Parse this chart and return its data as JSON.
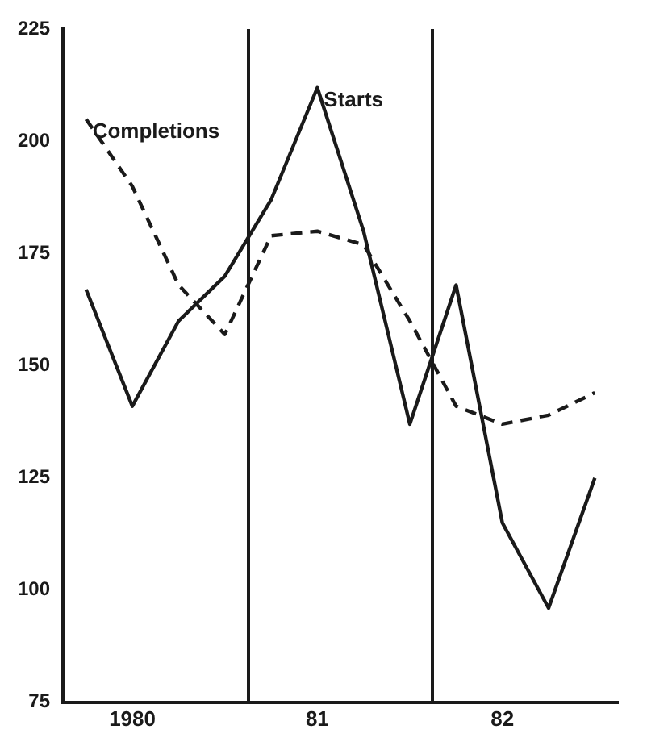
{
  "chart_data": {
    "type": "line",
    "categories": [
      null,
      "1980",
      null,
      null,
      null,
      "81",
      null,
      null,
      null,
      "82",
      null,
      null
    ],
    "series": [
      {
        "name": "Completions",
        "color": "#1a1a1a",
        "line_style": "dashed",
        "values": [
          205,
          190,
          168,
          157,
          179,
          180,
          177,
          160,
          141,
          137,
          139,
          144
        ]
      },
      {
        "name": "Starts",
        "color": "#1a1a1a",
        "line_style": "solid",
        "values": [
          167,
          141,
          160,
          170,
          187,
          212,
          180,
          137,
          168,
          115,
          96,
          125
        ]
      }
    ],
    "ylim": [
      75,
      225
    ],
    "yticks": [
      75,
      100,
      125,
      150,
      175,
      200,
      225
    ],
    "grid": false,
    "legend": false,
    "marker": "none"
  }
}
